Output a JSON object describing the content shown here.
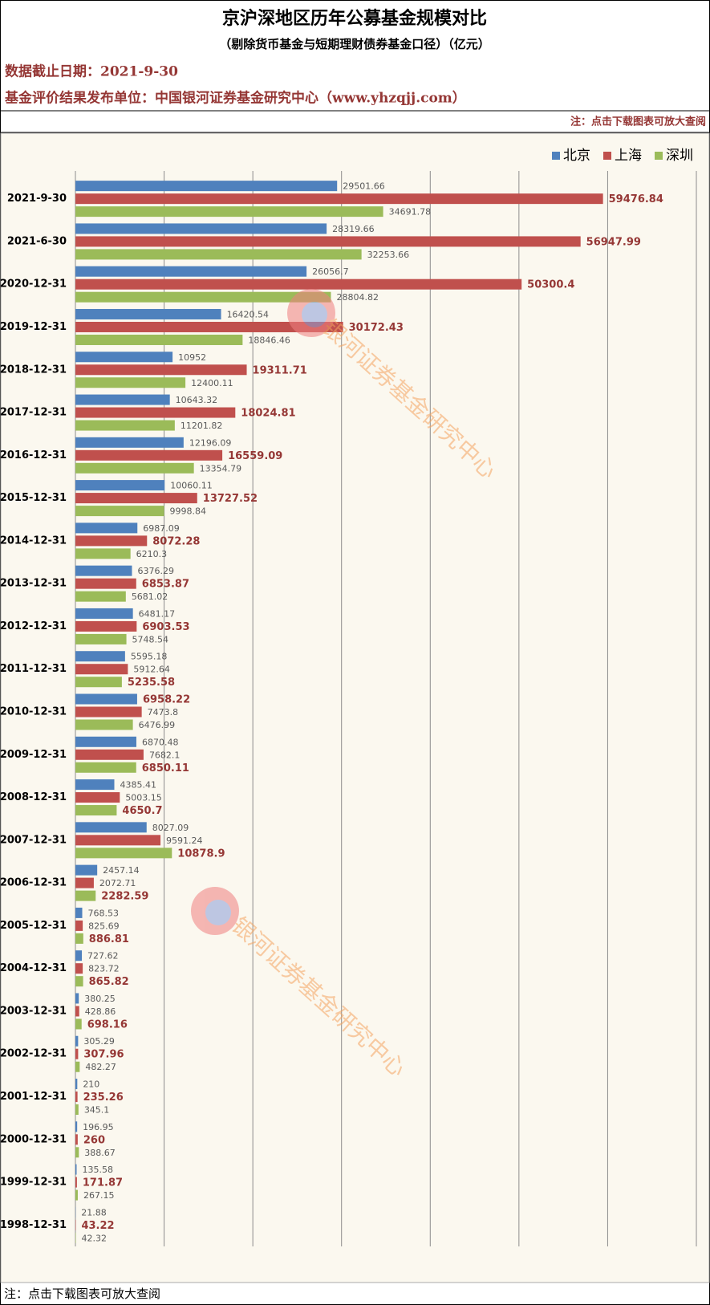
{
  "header": {
    "title": "京沪深地区历年公募基金规模对比",
    "subtitle": "（剔除货币基金与短期理财债券基金口径）（亿元）",
    "date": "数据截止日期：2021-9-30",
    "publisher": "基金评价结果发布单位：中国银河证券基金研究中心（www.yhzqjj.com）",
    "note": "注：点击下载图表可放大查阅"
  },
  "watermark": "银河证券基金研究中心",
  "footer": "注：点击下载图表可放大查阅",
  "chart_data": {
    "type": "hbar",
    "categories": [
      "2021-9-30",
      "2021-6-30",
      "2020-12-31",
      "2019-12-31",
      "2018-12-31",
      "2017-12-31",
      "2016-12-31",
      "2015-12-31",
      "2014-12-31",
      "2013-12-31",
      "2012-12-31",
      "2011-12-31",
      "2010-12-31",
      "2009-12-31",
      "2008-12-31",
      "2007-12-31",
      "2006-12-31",
      "2005-12-31",
      "2004-12-31",
      "2003-12-31",
      "2002-12-31",
      "2001-12-31",
      "2000-12-31",
      "1999-12-31",
      "1998-12-31"
    ],
    "series": [
      {
        "name": "北京",
        "color": "#4f81bd",
        "values": [
          29501.66,
          28319.66,
          26056.7,
          16420.54,
          10952,
          10643.32,
          12196.09,
          10060.11,
          6987.09,
          6376.29,
          6481.17,
          5595.18,
          6958.22,
          6870.48,
          4385.41,
          8027.09,
          2457.14,
          768.53,
          727.62,
          380.25,
          305.29,
          210,
          196.95,
          135.58,
          21.88
        ]
      },
      {
        "name": "上海",
        "color": "#c0504d",
        "values": [
          59476.84,
          56947.99,
          50300.4,
          30172.43,
          19311.71,
          18024.81,
          16559.09,
          13727.52,
          8072.28,
          6853.87,
          6903.53,
          5912.64,
          7473.8,
          7682.1,
          5003.15,
          9591.24,
          2072.71,
          825.69,
          823.72,
          428.86,
          307.96,
          235.26,
          260,
          171.87,
          43.22
        ]
      },
      {
        "name": "深圳",
        "color": "#9bbb59",
        "values": [
          34691.78,
          32253.66,
          28804.82,
          18846.46,
          12400.11,
          11201.82,
          13354.79,
          9998.84,
          6210.3,
          5681.02,
          5748.54,
          5235.58,
          6476.99,
          6850.11,
          4650.7,
          10878.9,
          2282.59,
          886.81,
          865.82,
          698.16,
          482.27,
          345.1,
          388.67,
          267.15,
          42.32
        ]
      }
    ],
    "highlight_series": [
      1,
      1,
      1,
      1,
      1,
      1,
      1,
      1,
      1,
      1,
      1,
      2,
      0,
      2,
      2,
      2,
      2,
      2,
      2,
      2,
      1,
      1,
      1,
      1,
      1
    ],
    "highlight_color": "#953735",
    "xlim": [
      0,
      70000
    ],
    "xticks": [
      0,
      10000,
      20000,
      30000,
      40000,
      50000,
      60000,
      70000
    ],
    "xtick_labels": false,
    "grid": true,
    "legend": "top-right"
  }
}
